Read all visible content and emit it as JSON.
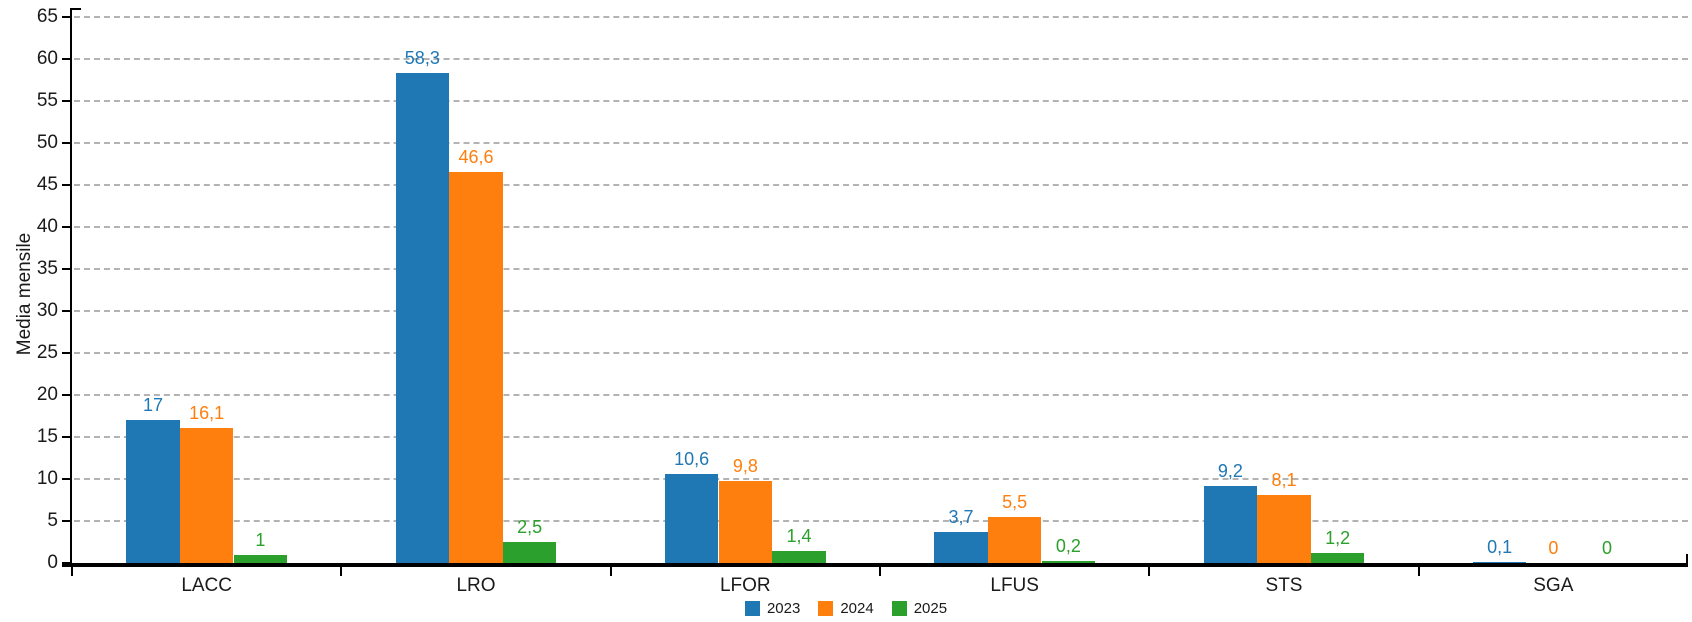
{
  "chart_data": {
    "type": "bar",
    "title": "",
    "xlabel": "",
    "ylabel": "Media mensile",
    "ylim": [
      0,
      65
    ],
    "yticks": [
      0,
      5,
      10,
      15,
      20,
      25,
      30,
      35,
      40,
      45,
      50,
      55,
      60,
      65
    ],
    "grid": "horizontal-dashed",
    "legend_position": "bottom-center",
    "decimal_separator": ",",
    "categories": [
      "LACC",
      "LRO",
      "LFOR",
      "LFUS",
      "STS",
      "SGA"
    ],
    "series": [
      {
        "name": "2023",
        "color": "#1F77B4",
        "values": [
          17,
          58.3,
          10.6,
          3.7,
          9.2,
          0.1
        ],
        "labels": [
          "17",
          "58,3",
          "10,6",
          "3,7",
          "9,2",
          "0,1"
        ]
      },
      {
        "name": "2024",
        "color": "#FF7F0E",
        "values": [
          16.1,
          46.6,
          9.8,
          5.5,
          8.1,
          0
        ],
        "labels": [
          "16,1",
          "46,6",
          "9,8",
          "5,5",
          "8,1",
          "0"
        ]
      },
      {
        "name": "2025",
        "color": "#2CA02C",
        "values": [
          1,
          2.5,
          1.4,
          0.2,
          1.2,
          0
        ],
        "labels": [
          "1",
          "2,5",
          "1,4",
          "0,2",
          "1,2",
          "0"
        ]
      }
    ],
    "colors": {
      "axis": "#000000",
      "grid": "#b3b3b3",
      "text": "#1a1a1a"
    }
  }
}
